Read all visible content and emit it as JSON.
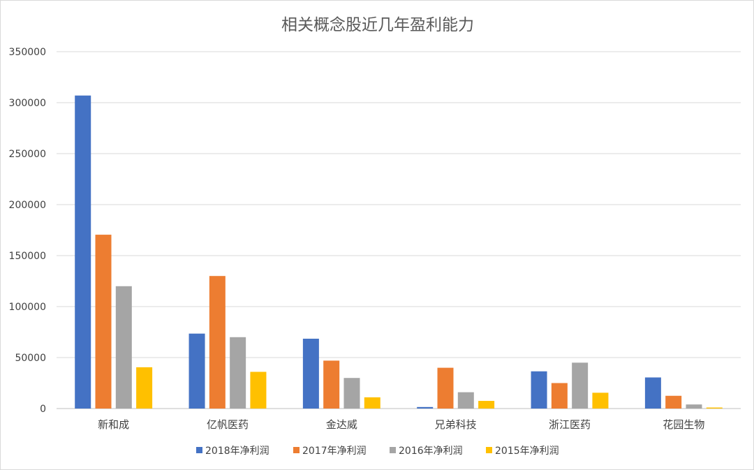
{
  "chart_data": {
    "type": "bar",
    "title": "相关概念股近几年盈利能力",
    "xlabel": "",
    "ylabel": "",
    "ylim": [
      0,
      350000
    ],
    "yticks": [
      0,
      50000,
      100000,
      150000,
      200000,
      250000,
      300000,
      350000
    ],
    "ytick_labels": [
      "0",
      "50000",
      "100000",
      "150000",
      "200000",
      "250000",
      "300000",
      "350000"
    ],
    "grid": true,
    "legend_position": "bottom",
    "categories": [
      "新和成",
      "亿帆医药",
      "金达威",
      "兄弟科技",
      "浙江医药",
      "花园生物"
    ],
    "series": [
      {
        "name": "2018年净利润",
        "color": "#4472c4",
        "values": [
          307000,
          73500,
          68500,
          1500,
          36500,
          30500
        ]
      },
      {
        "name": "2017年净利润",
        "color": "#ed7d31",
        "values": [
          170500,
          130000,
          47000,
          40000,
          25000,
          12500
        ]
      },
      {
        "name": "2016年净利润",
        "color": "#a5a5a5",
        "values": [
          120000,
          70000,
          30000,
          16000,
          45000,
          4000
        ]
      },
      {
        "name": "2015年净利润",
        "color": "#ffc000",
        "values": [
          40500,
          36000,
          11000,
          7500,
          15500,
          1000
        ]
      }
    ]
  }
}
